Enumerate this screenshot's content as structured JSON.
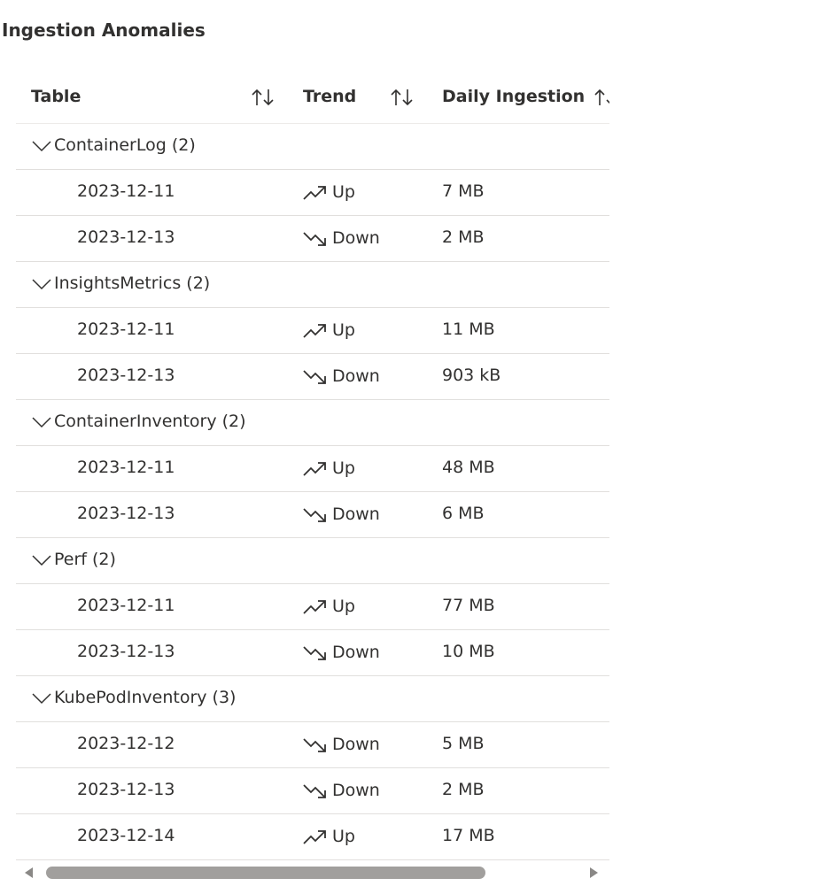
{
  "page": {
    "title": "Ingestion Anomalies"
  },
  "columns": [
    {
      "label": "Table",
      "sort_icon": "sort-arrows-icon"
    },
    {
      "label": "Trend",
      "sort_icon": "sort-arrows-icon"
    },
    {
      "label": "Daily Ingestion",
      "sort_icon": "sort-arrows-icon"
    }
  ],
  "groups": [
    {
      "label": "ContainerLog (2)",
      "rows": [
        {
          "date": "2023-12-11",
          "trend": "Up",
          "size": "7 MB"
        },
        {
          "date": "2023-12-13",
          "trend": "Down",
          "size": "2 MB"
        }
      ]
    },
    {
      "label": "InsightsMetrics (2)",
      "rows": [
        {
          "date": "2023-12-11",
          "trend": "Up",
          "size": "11 MB"
        },
        {
          "date": "2023-12-13",
          "trend": "Down",
          "size": "903 kB"
        }
      ]
    },
    {
      "label": "ContainerInventory (2)",
      "rows": [
        {
          "date": "2023-12-11",
          "trend": "Up",
          "size": "48 MB"
        },
        {
          "date": "2023-12-13",
          "trend": "Down",
          "size": "6 MB"
        }
      ]
    },
    {
      "label": "Perf (2)",
      "rows": [
        {
          "date": "2023-12-11",
          "trend": "Up",
          "size": "77 MB"
        },
        {
          "date": "2023-12-13",
          "trend": "Down",
          "size": "10 MB"
        }
      ]
    },
    {
      "label": "KubePodInventory (3)",
      "rows": [
        {
          "date": "2023-12-12",
          "trend": "Down",
          "size": "5 MB"
        },
        {
          "date": "2023-12-13",
          "trend": "Down",
          "size": "2 MB"
        },
        {
          "date": "2023-12-14",
          "trend": "Up",
          "size": "17 MB"
        }
      ]
    }
  ],
  "icons": {
    "group_toggle": "chevron-down-icon",
    "trend_up": "trending-up-icon",
    "trend_down": "trending-down-icon"
  },
  "scrollbar": {
    "position_fraction": 0.0
  }
}
